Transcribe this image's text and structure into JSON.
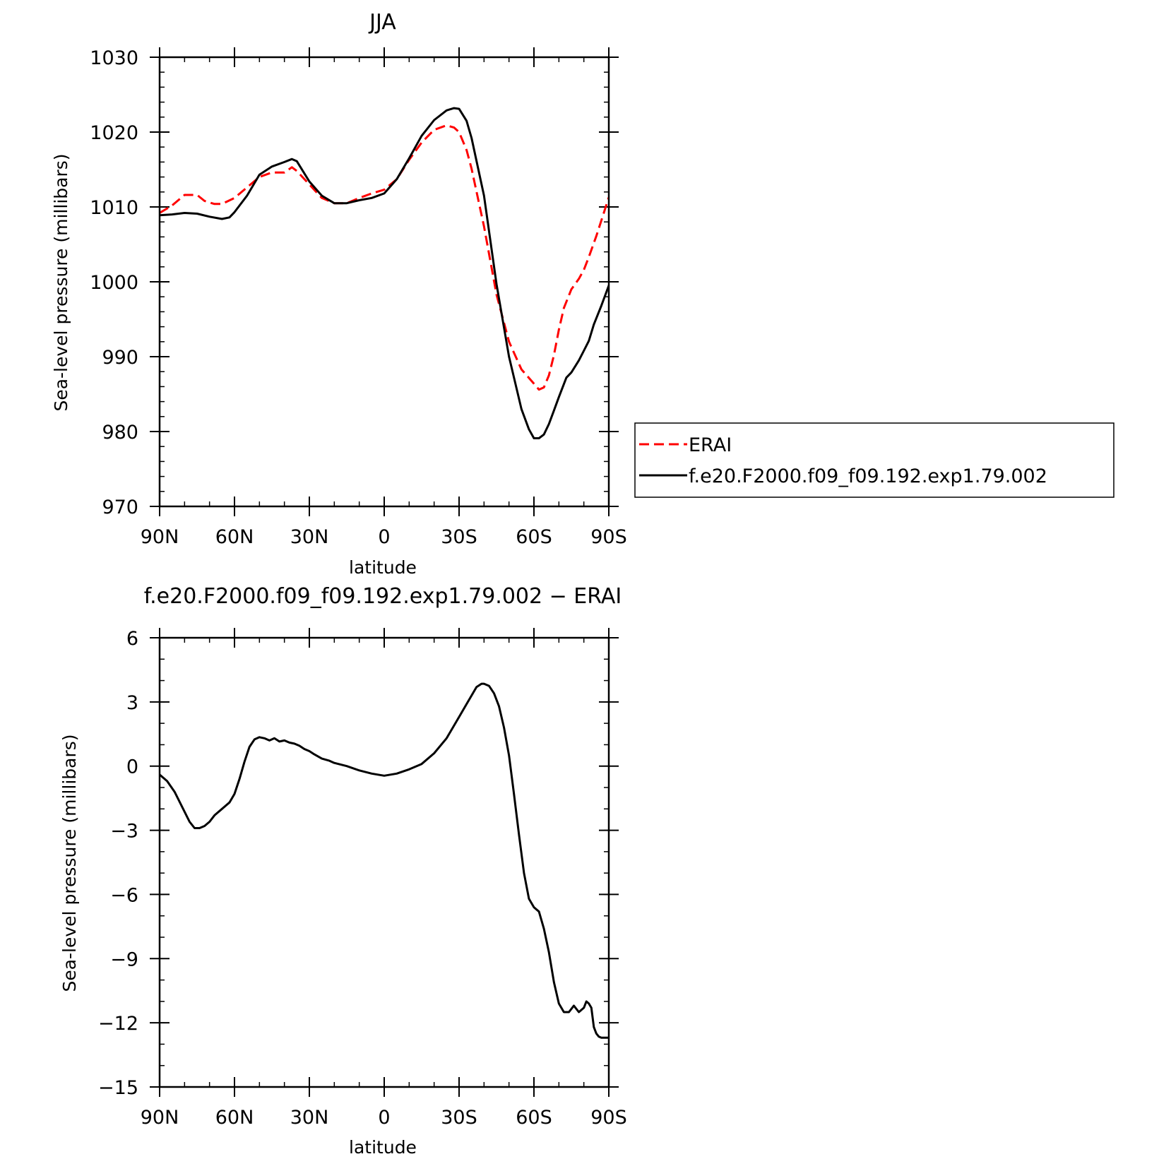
{
  "chart_data": [
    {
      "type": "line",
      "title": "JJA",
      "xlabel": "latitude",
      "ylabel": "Sea-level pressure (millibars)",
      "xlim": [
        90,
        -90
      ],
      "ylim": [
        970,
        1030
      ],
      "x_ticks": [
        90,
        60,
        30,
        0,
        -30,
        -60,
        -90
      ],
      "x_tick_labels": [
        "90N",
        "60N",
        "30N",
        "0",
        "30S",
        "60S",
        "90S"
      ],
      "y_ticks": [
        970,
        980,
        990,
        1000,
        1010,
        1020,
        1030
      ],
      "y_tick_labels": [
        "970",
        "980",
        "990",
        "1000",
        "1010",
        "1020",
        "1030"
      ],
      "legend_position": "right",
      "series": [
        {
          "name": "ERAI",
          "color": "#ff0000",
          "style": "dashed",
          "x": [
            90,
            85,
            80,
            75,
            72,
            68,
            65,
            60,
            55,
            50,
            45,
            40,
            37,
            35,
            30,
            25,
            20,
            15,
            10,
            5,
            0,
            -5,
            -10,
            -15,
            -20,
            -25,
            -28,
            -30,
            -33,
            -35,
            -40,
            -45,
            -50,
            -55,
            -60,
            -62,
            -64,
            -66,
            -68,
            -70,
            -72,
            -75,
            -78,
            -80,
            -82,
            -85,
            -88,
            -90
          ],
          "values": [
            1009.2,
            1010.2,
            1011.6,
            1011.6,
            1010.8,
            1010.4,
            1010.4,
            1011.2,
            1012.6,
            1014.0,
            1014.6,
            1014.6,
            1015.3,
            1014.8,
            1013.0,
            1011.2,
            1010.5,
            1010.5,
            1011.2,
            1011.8,
            1012.3,
            1013.7,
            1016.3,
            1018.6,
            1020.3,
            1020.9,
            1020.6,
            1020.0,
            1017.6,
            1015.1,
            1007.4,
            998.3,
            992.0,
            988.3,
            986.4,
            985.6,
            985.9,
            987.5,
            990.2,
            993.6,
            996.5,
            999.0,
            1000.4,
            1001.6,
            1003.3,
            1006.1,
            1009.2,
            1011.3
          ]
        },
        {
          "name": "f.e20.F2000.f09_f09.192.exp1.79.002",
          "color": "#000000",
          "style": "solid",
          "x": [
            90,
            85,
            80,
            75,
            70,
            65,
            62,
            60,
            55,
            50,
            45,
            40,
            37,
            35,
            30,
            25,
            20,
            15,
            10,
            5,
            0,
            -5,
            -10,
            -15,
            -20,
            -25,
            -28,
            -30,
            -33,
            -35,
            -40,
            -45,
            -50,
            -55,
            -58,
            -60,
            -62,
            -64,
            -66,
            -68,
            -70,
            -73,
            -75,
            -78,
            -80,
            -82,
            -84,
            -87,
            -90
          ],
          "values": [
            1008.9,
            1009.0,
            1009.2,
            1009.1,
            1008.7,
            1008.4,
            1008.6,
            1009.3,
            1011.5,
            1014.3,
            1015.4,
            1016.0,
            1016.4,
            1016.1,
            1013.4,
            1011.5,
            1010.5,
            1010.5,
            1010.9,
            1011.2,
            1011.8,
            1013.7,
            1016.5,
            1019.5,
            1021.6,
            1022.9,
            1023.2,
            1023.1,
            1021.5,
            1019.2,
            1011.5,
            999.7,
            990.0,
            983.0,
            980.3,
            979.1,
            979.1,
            979.6,
            981.0,
            982.8,
            984.6,
            987.2,
            987.9,
            989.5,
            990.8,
            992.1,
            994.3,
            996.8,
            999.5
          ]
        }
      ]
    },
    {
      "type": "line",
      "title": "f.e20.F2000.f09_f09.192.exp1.79.002 − ERAI",
      "xlabel": "latitude",
      "ylabel": "Sea-level pressure (millibars)",
      "xlim": [
        90,
        -90
      ],
      "ylim": [
        -15,
        6
      ],
      "x_ticks": [
        90,
        60,
        30,
        0,
        -30,
        -60,
        -90
      ],
      "x_tick_labels": [
        "90N",
        "60N",
        "30N",
        "0",
        "30S",
        "60S",
        "90S"
      ],
      "y_ticks": [
        -15,
        -12,
        -9,
        -6,
        -3,
        0,
        3,
        6
      ],
      "y_tick_labels": [
        "−15",
        "−12",
        "−9",
        "−6",
        "−3",
        "0",
        "3",
        "6"
      ],
      "series": [
        {
          "name": "",
          "color": "#000000",
          "style": "solid",
          "x": [
            90,
            87,
            84,
            81,
            78,
            76,
            74,
            72,
            70,
            68,
            65,
            62,
            60,
            58,
            56,
            54,
            52,
            50,
            48,
            46,
            44,
            42,
            40,
            38,
            36,
            34,
            32,
            30,
            28,
            25,
            22,
            20,
            15,
            10,
            5,
            0,
            -5,
            -10,
            -15,
            -20,
            -25,
            -30,
            -33,
            -35,
            -37,
            -39,
            -40,
            -42,
            -44,
            -46,
            -48,
            -50,
            -52,
            -54,
            -56,
            -58,
            -60,
            -62,
            -64,
            -66,
            -68,
            -70,
            -72,
            -74,
            -76,
            -78,
            -80,
            -81,
            -82,
            -83,
            -84,
            -85,
            -86,
            -87,
            -88,
            -90
          ],
          "values": [
            -0.4,
            -0.7,
            -1.2,
            -1.9,
            -2.6,
            -2.9,
            -2.9,
            -2.8,
            -2.6,
            -2.3,
            -2.0,
            -1.7,
            -1.3,
            -0.6,
            0.2,
            0.9,
            1.25,
            1.35,
            1.3,
            1.2,
            1.3,
            1.15,
            1.2,
            1.1,
            1.05,
            0.95,
            0.8,
            0.7,
            0.55,
            0.35,
            0.25,
            0.15,
            0.0,
            -0.2,
            -0.35,
            -0.45,
            -0.35,
            -0.15,
            0.1,
            0.6,
            1.3,
            2.3,
            2.9,
            3.3,
            3.7,
            3.85,
            3.85,
            3.75,
            3.4,
            2.8,
            1.8,
            0.5,
            -1.3,
            -3.2,
            -5.0,
            -6.2,
            -6.6,
            -6.8,
            -7.6,
            -8.7,
            -10.1,
            -11.1,
            -11.5,
            -11.5,
            -11.2,
            -11.5,
            -11.3,
            -11.0,
            -11.1,
            -11.3,
            -12.2,
            -12.5,
            -12.65,
            -12.7,
            -12.7,
            -12.7
          ]
        }
      ]
    }
  ]
}
